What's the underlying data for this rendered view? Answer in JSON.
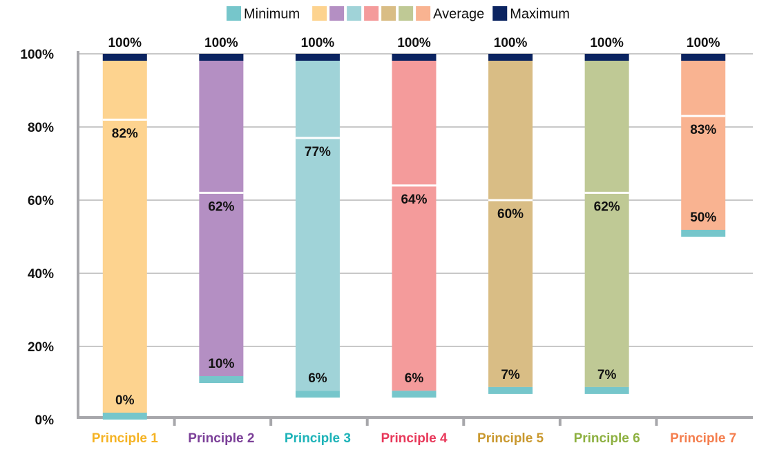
{
  "chart_data": {
    "type": "range-bar",
    "categories": [
      "Principle 1",
      "Principle 2",
      "Principle 3",
      "Principle 4",
      "Principle 5",
      "Principle 6",
      "Principle 7"
    ],
    "category_colors": [
      "#f5b324",
      "#7b3f98",
      "#1db3b8",
      "#e8385a",
      "#c9982e",
      "#8db040",
      "#f47e4e"
    ],
    "bar_colors": [
      "#fdd38f",
      "#b48fc3",
      "#a0d3d8",
      "#f49b9b",
      "#d9bd85",
      "#bfc995",
      "#f9b391"
    ],
    "series": [
      {
        "name": "Minimum",
        "color": "#76c6cb",
        "values": [
          0,
          10,
          6,
          6,
          7,
          7,
          50
        ],
        "value_labels": [
          "0%",
          "10%",
          "6%",
          "6%",
          "7%",
          "7%",
          "50%"
        ]
      },
      {
        "name": "Average",
        "color": "#ffffff",
        "values": [
          82,
          62,
          77,
          64,
          60,
          62,
          83
        ],
        "value_labels": [
          "82%",
          "62%",
          "77%",
          "64%",
          "60%",
          "62%",
          "83%"
        ]
      },
      {
        "name": "Maximum",
        "color": "#0b2461",
        "values": [
          100,
          100,
          100,
          100,
          100,
          100,
          100
        ],
        "value_labels": [
          "100%",
          "100%",
          "100%",
          "100%",
          "100%",
          "100%",
          "100%"
        ]
      }
    ],
    "ylim": [
      0,
      100
    ],
    "yticks": [
      {
        "value": 0,
        "label": "0%"
      },
      {
        "value": 20,
        "label": "20%"
      },
      {
        "value": 40,
        "label": "40%"
      },
      {
        "value": 60,
        "label": "60%"
      },
      {
        "value": 80,
        "label": "80%"
      },
      {
        "value": 100,
        "label": "100%"
      }
    ],
    "grid": true,
    "legend": "top"
  }
}
